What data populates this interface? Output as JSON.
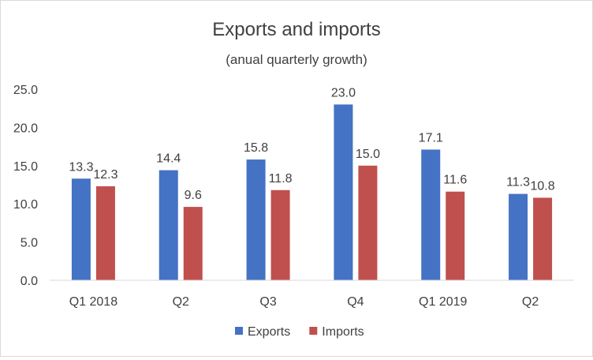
{
  "chart_data": {
    "type": "bar",
    "title": "Exports and imports",
    "subtitle": "(anual quarterly growth)",
    "xlabel": "",
    "ylabel": "",
    "categories": [
      "Q1 2018",
      "Q2",
      "Q3",
      "Q4",
      "Q1 2019",
      "Q2"
    ],
    "series": [
      {
        "name": "Exports",
        "color": "#4472C4",
        "values": [
          13.3,
          14.4,
          15.8,
          23.0,
          17.1,
          11.3
        ]
      },
      {
        "name": "Imports",
        "color": "#C0504D",
        "values": [
          12.3,
          9.6,
          11.8,
          15.0,
          11.6,
          10.8
        ]
      }
    ],
    "ylim": [
      0,
      25
    ],
    "yticks": [
      0,
      5,
      10,
      15,
      20,
      25
    ],
    "ytick_format": "0.0",
    "grid": false,
    "data_labels": true,
    "legend_position": "bottom"
  }
}
